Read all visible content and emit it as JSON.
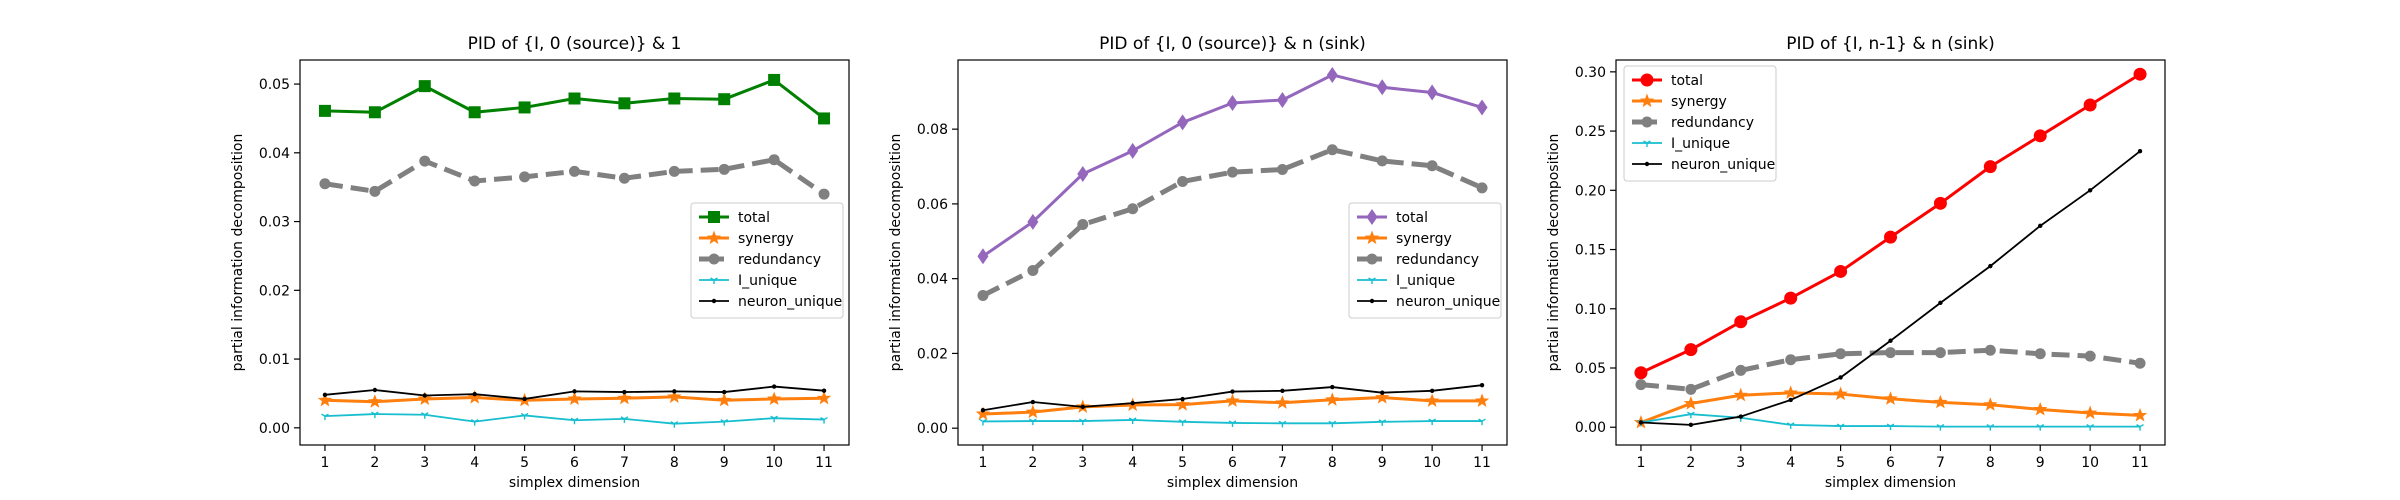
{
  "chart_data": [
    {
      "type": "line",
      "title": "PID of {I, 0 (source)} & 1",
      "xlabel": "simplex dimension",
      "ylabel": "partial information decomposition",
      "x": [
        1,
        2,
        3,
        4,
        5,
        6,
        7,
        8,
        9,
        10,
        11
      ],
      "xlim": [
        0.5,
        11.5
      ],
      "ylim": [
        -0.0025,
        0.0535
      ],
      "yticks": [
        0.0,
        0.01,
        0.02,
        0.03,
        0.04,
        0.05
      ],
      "ytick_labels": [
        "0.00",
        "0.01",
        "0.02",
        "0.03",
        "0.04",
        "0.05"
      ],
      "legend_position": "center-right",
      "grid": false,
      "series": [
        {
          "name": "total",
          "color": "#008000",
          "marker": "square",
          "style": "solid",
          "values": [
            0.0461,
            0.0459,
            0.0497,
            0.0459,
            0.0466,
            0.0479,
            0.0472,
            0.0479,
            0.0478,
            0.0506,
            0.045
          ]
        },
        {
          "name": "synergy",
          "color": "#ff7f0e",
          "marker": "star",
          "style": "solid",
          "values": [
            0.004,
            0.0038,
            0.0042,
            0.0044,
            0.004,
            0.0042,
            0.0043,
            0.0045,
            0.004,
            0.0042,
            0.0043
          ]
        },
        {
          "name": "redundancy",
          "color": "#808080",
          "marker": "circle",
          "style": "dashed",
          "values": [
            0.0355,
            0.0344,
            0.0388,
            0.0359,
            0.0365,
            0.0373,
            0.0363,
            0.0373,
            0.0376,
            0.039,
            0.034
          ]
        },
        {
          "name": "I_unique",
          "color": "#17becf",
          "marker": "tri",
          "style": "solid",
          "values": [
            0.0017,
            0.002,
            0.0019,
            0.0009,
            0.0018,
            0.0011,
            0.0013,
            0.0006,
            0.0009,
            0.0014,
            0.0012
          ]
        },
        {
          "name": "neuron_unique",
          "color": "#000000",
          "marker": "point",
          "style": "solid",
          "values": [
            0.0048,
            0.0055,
            0.0047,
            0.0049,
            0.0042,
            0.0053,
            0.0052,
            0.0053,
            0.0052,
            0.006,
            0.0054
          ]
        }
      ]
    },
    {
      "type": "line",
      "title": "PID of {I, 0 (source)} & n (sink)",
      "xlabel": "simplex dimension",
      "ylabel": "partial information decomposition",
      "x": [
        1,
        2,
        3,
        4,
        5,
        6,
        7,
        8,
        9,
        10,
        11
      ],
      "xlim": [
        0.5,
        11.5
      ],
      "ylim": [
        -0.0045,
        0.0985
      ],
      "yticks": [
        0.0,
        0.02,
        0.04,
        0.06,
        0.08
      ],
      "ytick_labels": [
        "0.00",
        "0.02",
        "0.04",
        "0.06",
        "0.08"
      ],
      "legend_position": "center-right",
      "grid": false,
      "series": [
        {
          "name": "total",
          "color": "#9467bd",
          "marker": "diamond",
          "style": "solid",
          "values": [
            0.046,
            0.0552,
            0.068,
            0.0742,
            0.0818,
            0.087,
            0.0878,
            0.0945,
            0.0912,
            0.0898,
            0.0858
          ]
        },
        {
          "name": "synergy",
          "color": "#ff7f0e",
          "marker": "star",
          "style": "solid",
          "values": [
            0.0038,
            0.0043,
            0.0057,
            0.0062,
            0.0063,
            0.0073,
            0.0068,
            0.0076,
            0.0082,
            0.0073,
            0.0073
          ]
        },
        {
          "name": "redundancy",
          "color": "#808080",
          "marker": "circle",
          "style": "dashed",
          "values": [
            0.0355,
            0.0422,
            0.0545,
            0.0587,
            0.066,
            0.0685,
            0.0692,
            0.0745,
            0.0715,
            0.0702,
            0.0643
          ]
        },
        {
          "name": "I_unique",
          "color": "#17becf",
          "marker": "tri",
          "style": "solid",
          "values": [
            0.0018,
            0.0019,
            0.0019,
            0.0022,
            0.0017,
            0.0014,
            0.0013,
            0.0013,
            0.0017,
            0.0019,
            0.0019
          ]
        },
        {
          "name": "neuron_unique",
          "color": "#000000",
          "marker": "point",
          "style": "solid",
          "values": [
            0.0048,
            0.007,
            0.0057,
            0.0067,
            0.0078,
            0.0098,
            0.01,
            0.011,
            0.0095,
            0.01,
            0.0115
          ]
        }
      ]
    },
    {
      "type": "line",
      "title": "PID of {I, n-1} & n (sink)",
      "xlabel": "simplex dimension",
      "ylabel": "partial information decomposition",
      "x": [
        1,
        2,
        3,
        4,
        5,
        6,
        7,
        8,
        9,
        10,
        11
      ],
      "xlim": [
        0.5,
        11.5
      ],
      "ylim": [
        -0.015,
        0.31
      ],
      "yticks": [
        0.0,
        0.05,
        0.1,
        0.15,
        0.2,
        0.25,
        0.3
      ],
      "ytick_labels": [
        "0.00",
        "0.05",
        "0.10",
        "0.15",
        "0.20",
        "0.25",
        "0.30"
      ],
      "legend_position": "upper-left",
      "grid": false,
      "series": [
        {
          "name": "total",
          "color": "#ff0000",
          "marker": "circle",
          "style": "solid",
          "values": [
            0.046,
            0.0655,
            0.089,
            0.109,
            0.1315,
            0.1605,
            0.189,
            0.22,
            0.246,
            0.272,
            0.298
          ]
        },
        {
          "name": "synergy",
          "color": "#ff7f0e",
          "marker": "star",
          "style": "solid",
          "values": [
            0.004,
            0.02,
            0.027,
            0.029,
            0.028,
            0.024,
            0.021,
            0.019,
            0.015,
            0.012,
            0.01
          ]
        },
        {
          "name": "redundancy",
          "color": "#808080",
          "marker": "circle",
          "style": "dashed",
          "values": [
            0.036,
            0.032,
            0.048,
            0.057,
            0.062,
            0.063,
            0.063,
            0.065,
            0.062,
            0.06,
            0.054
          ]
        },
        {
          "name": "I_unique",
          "color": "#17becf",
          "marker": "tri",
          "style": "solid",
          "values": [
            0.004,
            0.011,
            0.008,
            0.002,
            0.001,
            0.001,
            0.0005,
            0.0005,
            0.0005,
            0.0005,
            0.0005
          ]
        },
        {
          "name": "neuron_unique",
          "color": "#000000",
          "marker": "point",
          "style": "solid",
          "values": [
            0.004,
            0.002,
            0.009,
            0.023,
            0.042,
            0.073,
            0.105,
            0.136,
            0.17,
            0.2,
            0.233
          ]
        }
      ]
    }
  ]
}
